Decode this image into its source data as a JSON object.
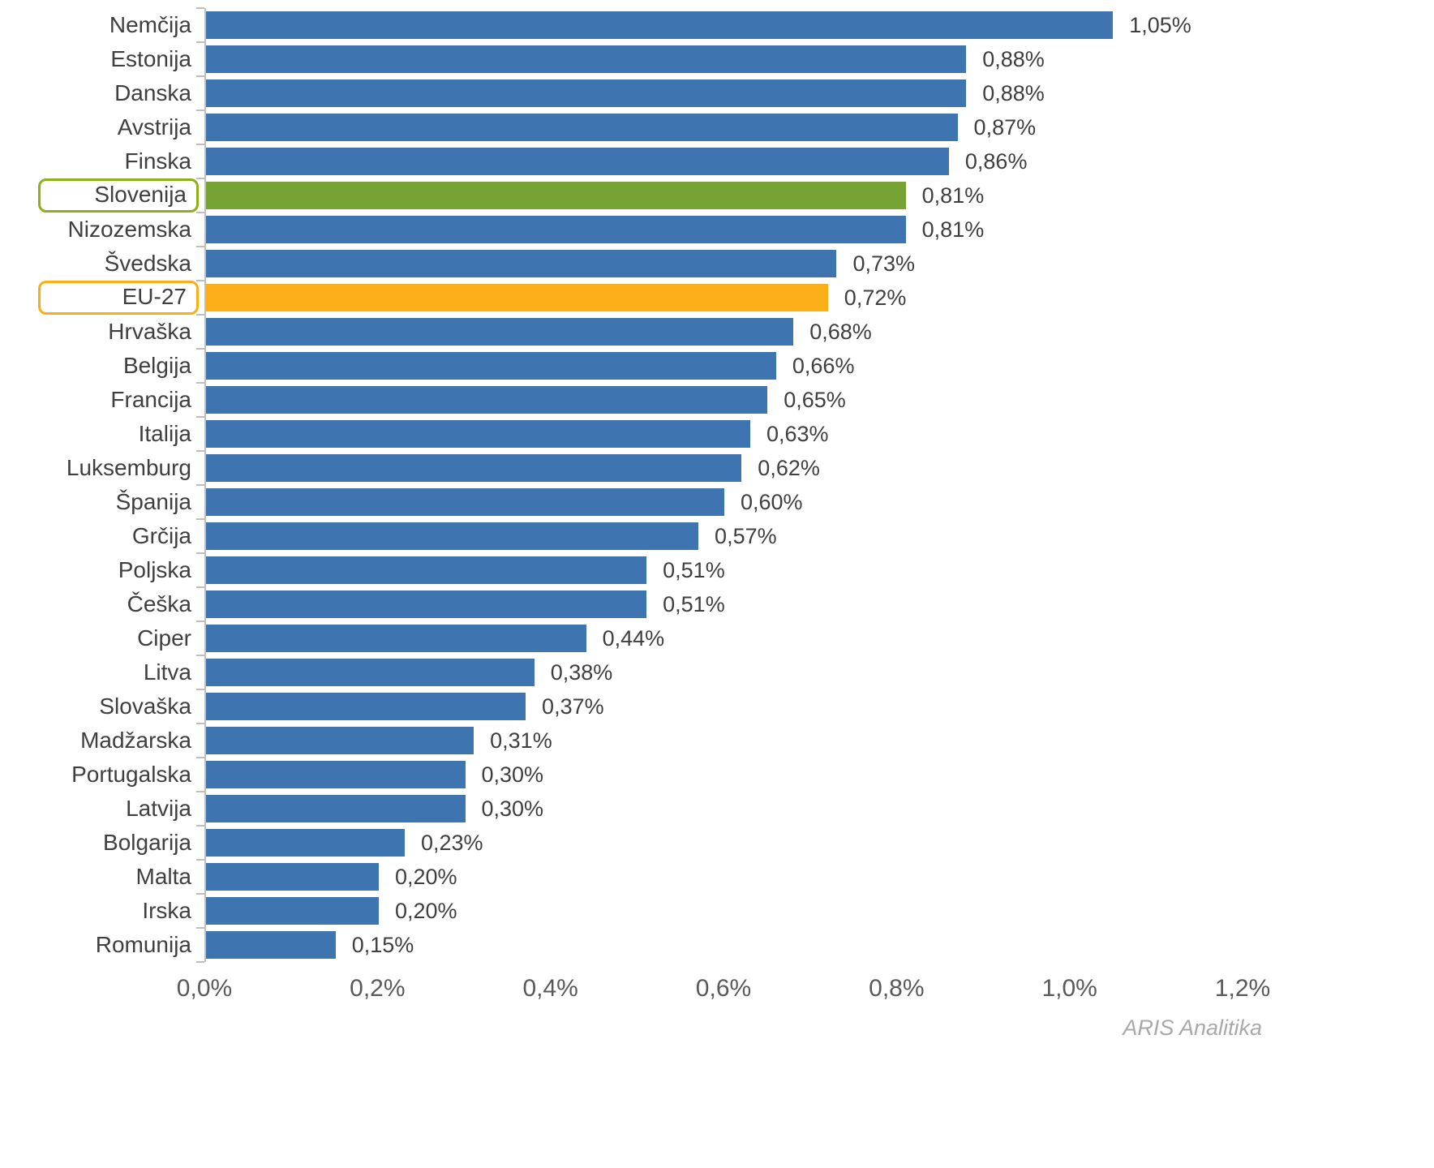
{
  "chart_data": {
    "type": "bar",
    "orientation": "horizontal",
    "title": "",
    "xlabel": "",
    "ylabel": "",
    "grid": false,
    "legend": false,
    "xlim": [
      0,
      1.2
    ],
    "x_ticks": [
      0,
      0.2,
      0.4,
      0.6,
      0.8,
      1.0,
      1.2
    ],
    "x_tick_labels": [
      "0,0%",
      "0,2%",
      "0,4%",
      "0,6%",
      "0,8%",
      "1,0%",
      "1,2%"
    ],
    "categories": [
      "Nemčija",
      "Estonija",
      "Danska",
      "Avstrija",
      "Finska",
      "Slovenija",
      "Nizozemska",
      "Švedska",
      "EU-27",
      "Hrvaška",
      "Belgija",
      "Francija",
      "Italija",
      "Luksemburg",
      "Španija",
      "Grčija",
      "Poljska",
      "Češka",
      "Ciper",
      "Litva",
      "Slovaška",
      "Madžarska",
      "Portugalska",
      "Latvija",
      "Bolgarija",
      "Malta",
      "Irska",
      "Romunija"
    ],
    "values": [
      1.05,
      0.88,
      0.88,
      0.87,
      0.86,
      0.81,
      0.81,
      0.73,
      0.72,
      0.68,
      0.66,
      0.65,
      0.63,
      0.62,
      0.6,
      0.57,
      0.51,
      0.51,
      0.44,
      0.38,
      0.37,
      0.31,
      0.3,
      0.3,
      0.23,
      0.2,
      0.2,
      0.15
    ],
    "value_labels": [
      "1,05%",
      "0,88%",
      "0,88%",
      "0,87%",
      "0,86%",
      "0,81%",
      "0,81%",
      "0,73%",
      "0,72%",
      "0,68%",
      "0,66%",
      "0,65%",
      "0,63%",
      "0,62%",
      "0,60%",
      "0,57%",
      "0,51%",
      "0,51%",
      "0,44%",
      "0,38%",
      "0,37%",
      "0,31%",
      "0,30%",
      "0,30%",
      "0,23%",
      "0,20%",
      "0,20%",
      "0,15%"
    ],
    "highlighted": [
      {
        "category": "Slovenija",
        "bar_color": "#76A333",
        "outline_color": "#8FB019"
      },
      {
        "category": "EU-27",
        "bar_color": "#FBAE17",
        "outline_color": "#FBAE17"
      }
    ],
    "colors": {
      "bar_default": "#3E74B0",
      "axis": "#BFBFBF",
      "category_text": "#3F3F3F",
      "value_text": "#3F3F3F",
      "tick_text": "#595959"
    }
  },
  "footer": {
    "credit": "ARIS Analitika"
  }
}
